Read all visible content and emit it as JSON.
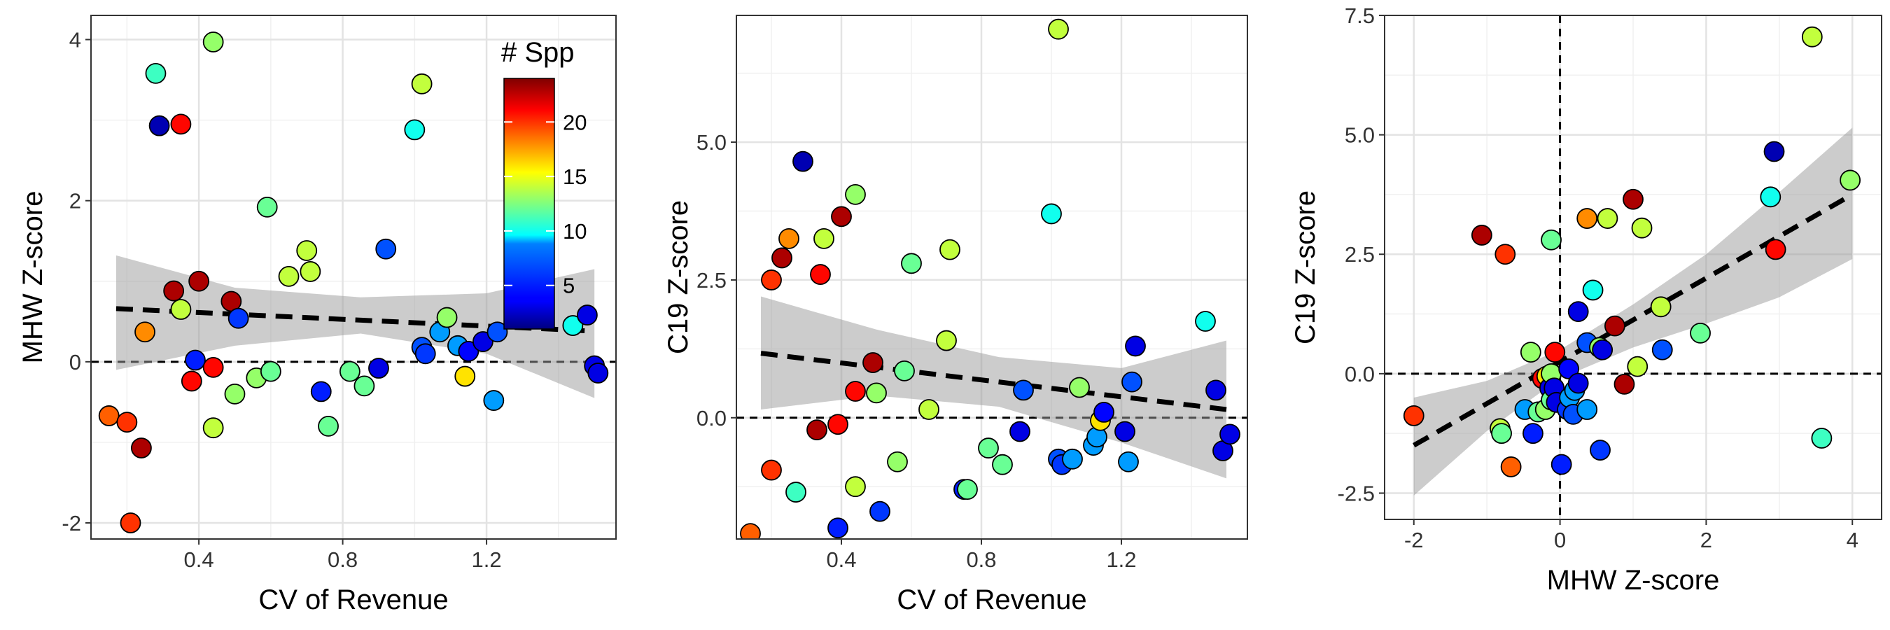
{
  "chart_data": [
    {
      "type": "scatter",
      "xlabel": "CV of Revenue",
      "ylabel": "MHW Z-score",
      "xlim": [
        0.1,
        1.56
      ],
      "ylim": [
        -2.2,
        4.3
      ],
      "x_ticks": [
        0.4,
        0.8,
        1.2
      ],
      "x_tick_labels": [
        "0.4",
        "0.8",
        "1.2"
      ],
      "y_ticks": [
        -2,
        0,
        2,
        4
      ],
      "y_tick_labels": [
        "-2",
        "0",
        "2",
        "4"
      ],
      "grid": true,
      "hline": 0,
      "fit": {
        "x0": 0.17,
        "y0": 0.66,
        "x1": 1.5,
        "y1": 0.38
      },
      "ci_band": {
        "x": [
          0.17,
          0.5,
          0.85,
          1.2,
          1.5
        ],
        "lower": [
          -0.1,
          0.2,
          0.35,
          0.1,
          -0.45
        ],
        "upper": [
          1.32,
          0.92,
          0.8,
          0.85,
          1.15
        ]
      },
      "points": [
        {
          "x": 0.15,
          "y": -0.67,
          "spp": 19
        },
        {
          "x": 0.2,
          "y": -0.75,
          "spp": 20
        },
        {
          "x": 0.21,
          "y": -2.0,
          "spp": 20
        },
        {
          "x": 0.24,
          "y": -1.07,
          "spp": 23
        },
        {
          "x": 0.25,
          "y": 0.37,
          "spp": 18
        },
        {
          "x": 0.28,
          "y": 3.58,
          "spp": 11
        },
        {
          "x": 0.29,
          "y": 2.93,
          "spp": 2
        },
        {
          "x": 0.33,
          "y": 0.88,
          "spp": 23
        },
        {
          "x": 0.35,
          "y": 2.95,
          "spp": 21
        },
        {
          "x": 0.35,
          "y": 0.65,
          "spp": 14
        },
        {
          "x": 0.38,
          "y": -0.24,
          "spp": 21
        },
        {
          "x": 0.39,
          "y": 0.02,
          "spp": 5
        },
        {
          "x": 0.4,
          "y": 1.0,
          "spp": 23
        },
        {
          "x": 0.44,
          "y": -0.07,
          "spp": 21
        },
        {
          "x": 0.44,
          "y": -0.82,
          "spp": 14
        },
        {
          "x": 0.44,
          "y": 3.97,
          "spp": 13
        },
        {
          "x": 0.49,
          "y": 0.75,
          "spp": 23
        },
        {
          "x": 0.5,
          "y": -0.4,
          "spp": 13
        },
        {
          "x": 0.51,
          "y": 0.54,
          "spp": 6
        },
        {
          "x": 0.56,
          "y": -0.2,
          "spp": 13
        },
        {
          "x": 0.59,
          "y": 1.92,
          "spp": 12
        },
        {
          "x": 0.6,
          "y": -0.12,
          "spp": 12
        },
        {
          "x": 0.65,
          "y": 1.06,
          "spp": 14
        },
        {
          "x": 0.7,
          "y": 1.38,
          "spp": 14
        },
        {
          "x": 0.71,
          "y": 1.12,
          "spp": 14
        },
        {
          "x": 0.74,
          "y": -0.37,
          "spp": 5
        },
        {
          "x": 0.76,
          "y": -0.8,
          "spp": 12
        },
        {
          "x": 0.82,
          "y": -0.12,
          "spp": 12
        },
        {
          "x": 0.86,
          "y": -0.3,
          "spp": 12
        },
        {
          "x": 0.9,
          "y": -0.08,
          "spp": 3
        },
        {
          "x": 0.92,
          "y": 1.4,
          "spp": 7
        },
        {
          "x": 1.0,
          "y": 2.88,
          "spp": 10
        },
        {
          "x": 1.02,
          "y": 3.45,
          "spp": 14
        },
        {
          "x": 1.02,
          "y": 0.18,
          "spp": 7
        },
        {
          "x": 1.03,
          "y": 0.1,
          "spp": 6
        },
        {
          "x": 1.07,
          "y": 0.37,
          "spp": 9
        },
        {
          "x": 1.09,
          "y": 0.55,
          "spp": 13
        },
        {
          "x": 1.12,
          "y": 0.2,
          "spp": 9
        },
        {
          "x": 1.14,
          "y": -0.18,
          "spp": 16
        },
        {
          "x": 1.15,
          "y": 0.13,
          "spp": 4
        },
        {
          "x": 1.19,
          "y": 0.25,
          "spp": 3
        },
        {
          "x": 1.22,
          "y": -0.48,
          "spp": 9
        },
        {
          "x": 1.23,
          "y": 0.37,
          "spp": 7
        },
        {
          "x": 1.44,
          "y": 0.45,
          "spp": 10
        },
        {
          "x": 1.48,
          "y": 0.58,
          "spp": 3
        },
        {
          "x": 1.5,
          "y": -0.05,
          "spp": 3
        },
        {
          "x": 1.51,
          "y": -0.14,
          "spp": 3
        }
      ],
      "legend": {
        "title": "# Spp",
        "position": "top-right",
        "range": [
          1,
          24
        ],
        "ticks": [
          5,
          10,
          15,
          20
        ],
        "tick_labels": [
          "5",
          "10",
          "15",
          "20"
        ]
      }
    },
    {
      "type": "scatter",
      "xlabel": "CV of Revenue",
      "ylabel": "C19 Z-score",
      "xlim": [
        0.1,
        1.56
      ],
      "ylim": [
        -2.2,
        7.3
      ],
      "x_ticks": [
        0.4,
        0.8,
        1.2
      ],
      "x_tick_labels": [
        "0.4",
        "0.8",
        "1.2"
      ],
      "y_ticks": [
        0,
        2.5,
        5
      ],
      "y_tick_labels": [
        "0.0",
        "2.5",
        "5.0"
      ],
      "grid": true,
      "hline": 0,
      "fit": {
        "x0": 0.17,
        "y0": 1.17,
        "x1": 1.5,
        "y1": 0.15
      },
      "ci_band": {
        "x": [
          0.17,
          0.5,
          0.85,
          1.2,
          1.5
        ],
        "lower": [
          0.15,
          0.4,
          0.2,
          -0.45,
          -1.1
        ],
        "upper": [
          2.2,
          1.6,
          1.1,
          0.9,
          1.4
        ]
      },
      "points": [
        {
          "x": 0.14,
          "y": -2.1,
          "spp": 19
        },
        {
          "x": 0.2,
          "y": 2.5,
          "spp": 20
        },
        {
          "x": 0.2,
          "y": -0.95,
          "spp": 20
        },
        {
          "x": 0.23,
          "y": 2.9,
          "spp": 23
        },
        {
          "x": 0.25,
          "y": 3.25,
          "spp": 18
        },
        {
          "x": 0.27,
          "y": -1.35,
          "spp": 11
        },
        {
          "x": 0.29,
          "y": 4.65,
          "spp": 2
        },
        {
          "x": 0.33,
          "y": -0.22,
          "spp": 23
        },
        {
          "x": 0.34,
          "y": 2.6,
          "spp": 21
        },
        {
          "x": 0.35,
          "y": 3.25,
          "spp": 14
        },
        {
          "x": 0.39,
          "y": -0.12,
          "spp": 21
        },
        {
          "x": 0.39,
          "y": -2.0,
          "spp": 5
        },
        {
          "x": 0.4,
          "y": 3.65,
          "spp": 23
        },
        {
          "x": 0.44,
          "y": 0.48,
          "spp": 21
        },
        {
          "x": 0.44,
          "y": -1.25,
          "spp": 14
        },
        {
          "x": 0.44,
          "y": 4.05,
          "spp": 13
        },
        {
          "x": 0.49,
          "y": 1.0,
          "spp": 23
        },
        {
          "x": 0.5,
          "y": 0.45,
          "spp": 13
        },
        {
          "x": 0.51,
          "y": -1.7,
          "spp": 6
        },
        {
          "x": 0.56,
          "y": -0.8,
          "spp": 13
        },
        {
          "x": 0.58,
          "y": 0.85,
          "spp": 12
        },
        {
          "x": 0.6,
          "y": 2.8,
          "spp": 12
        },
        {
          "x": 0.65,
          "y": 0.15,
          "spp": 14
        },
        {
          "x": 0.7,
          "y": 1.4,
          "spp": 14
        },
        {
          "x": 0.71,
          "y": 3.05,
          "spp": 14
        },
        {
          "x": 0.75,
          "y": -1.3,
          "spp": 5
        },
        {
          "x": 0.76,
          "y": -1.3,
          "spp": 12
        },
        {
          "x": 0.82,
          "y": -0.55,
          "spp": 12
        },
        {
          "x": 0.86,
          "y": -0.85,
          "spp": 12
        },
        {
          "x": 0.91,
          "y": -0.25,
          "spp": 3
        },
        {
          "x": 0.92,
          "y": 0.5,
          "spp": 7
        },
        {
          "x": 1.0,
          "y": 3.7,
          "spp": 10
        },
        {
          "x": 1.02,
          "y": 7.05,
          "spp": 14
        },
        {
          "x": 1.02,
          "y": -0.75,
          "spp": 7
        },
        {
          "x": 1.03,
          "y": -0.85,
          "spp": 6
        },
        {
          "x": 1.06,
          "y": -0.75,
          "spp": 9
        },
        {
          "x": 1.08,
          "y": 0.55,
          "spp": 13
        },
        {
          "x": 1.12,
          "y": -0.5,
          "spp": 9
        },
        {
          "x": 1.13,
          "y": -0.35,
          "spp": 9
        },
        {
          "x": 1.14,
          "y": -0.05,
          "spp": 16
        },
        {
          "x": 1.15,
          "y": 0.1,
          "spp": 4
        },
        {
          "x": 1.21,
          "y": -0.25,
          "spp": 3
        },
        {
          "x": 1.22,
          "y": -0.8,
          "spp": 9
        },
        {
          "x": 1.23,
          "y": 0.65,
          "spp": 7
        },
        {
          "x": 1.24,
          "y": 1.3,
          "spp": 3
        },
        {
          "x": 1.44,
          "y": 1.75,
          "spp": 10
        },
        {
          "x": 1.47,
          "y": 0.5,
          "spp": 3
        },
        {
          "x": 1.49,
          "y": -0.6,
          "spp": 3
        },
        {
          "x": 1.51,
          "y": -0.3,
          "spp": 3
        }
      ]
    },
    {
      "type": "scatter",
      "xlabel": "MHW Z-score",
      "ylabel": "C19 Z-score",
      "xlim": [
        -2.4,
        4.4
      ],
      "ylim": [
        -3.05,
        7.5
      ],
      "x_ticks": [
        -2,
        0,
        2,
        4
      ],
      "x_tick_labels": [
        "-2",
        "0",
        "2",
        "4"
      ],
      "y_ticks": [
        -2.5,
        0,
        2.5,
        5,
        7.5
      ],
      "y_tick_labels": [
        "-2.5",
        "0.0",
        "2.5",
        "5.0",
        "7.5"
      ],
      "grid": true,
      "hline": 0,
      "vline": 0,
      "fit": {
        "x0": -2.0,
        "y0": -1.5,
        "x1": 4.0,
        "y1": 3.75
      },
      "ci_band": {
        "x": [
          -2.0,
          -1.0,
          0.0,
          1.0,
          2.0,
          3.0,
          4.0
        ],
        "lower": [
          -2.55,
          -1.2,
          -0.1,
          0.55,
          1.05,
          1.6,
          2.4
        ],
        "upper": [
          -0.5,
          -0.15,
          0.5,
          1.45,
          2.5,
          3.8,
          5.15
        ]
      },
      "points": [
        {
          "x": -2.0,
          "y": -0.88,
          "spp": 20
        },
        {
          "x": -1.07,
          "y": 2.9,
          "spp": 23
        },
        {
          "x": -0.75,
          "y": 2.5,
          "spp": 20
        },
        {
          "x": -0.67,
          "y": -1.95,
          "spp": 19
        },
        {
          "x": -0.82,
          "y": -1.15,
          "spp": 14
        },
        {
          "x": -0.8,
          "y": -1.25,
          "spp": 12
        },
        {
          "x": -0.48,
          "y": -0.75,
          "spp": 9
        },
        {
          "x": -0.4,
          "y": 0.45,
          "spp": 13
        },
        {
          "x": -0.37,
          "y": -1.25,
          "spp": 5
        },
        {
          "x": -0.3,
          "y": -0.8,
          "spp": 12
        },
        {
          "x": -0.24,
          "y": -0.1,
          "spp": 21
        },
        {
          "x": -0.2,
          "y": -0.75,
          "spp": 13
        },
        {
          "x": -0.18,
          "y": -0.05,
          "spp": 16
        },
        {
          "x": -0.14,
          "y": -0.3,
          "spp": 3
        },
        {
          "x": -0.12,
          "y": 0.0,
          "spp": 13
        },
        {
          "x": -0.12,
          "y": -0.55,
          "spp": 12
        },
        {
          "x": -0.12,
          "y": 2.8,
          "spp": 12
        },
        {
          "x": -0.08,
          "y": -0.3,
          "spp": 3
        },
        {
          "x": -0.07,
          "y": 0.45,
          "spp": 21
        },
        {
          "x": -0.05,
          "y": -0.6,
          "spp": 3
        },
        {
          "x": 0.02,
          "y": -1.9,
          "spp": 5
        },
        {
          "x": 0.1,
          "y": -0.75,
          "spp": 6
        },
        {
          "x": 0.12,
          "y": 0.1,
          "spp": 4
        },
        {
          "x": 0.13,
          "y": -0.5,
          "spp": 9
        },
        {
          "x": 0.18,
          "y": -0.85,
          "spp": 7
        },
        {
          "x": 0.2,
          "y": -0.35,
          "spp": 9
        },
        {
          "x": 0.25,
          "y": -0.2,
          "spp": 3
        },
        {
          "x": 0.25,
          "y": 1.3,
          "spp": 3
        },
        {
          "x": 0.37,
          "y": 0.65,
          "spp": 7
        },
        {
          "x": 0.37,
          "y": -0.75,
          "spp": 9
        },
        {
          "x": 0.37,
          "y": 3.25,
          "spp": 18
        },
        {
          "x": 0.45,
          "y": 1.75,
          "spp": 10
        },
        {
          "x": 0.54,
          "y": 0.55,
          "spp": 13
        },
        {
          "x": 0.55,
          "y": -1.6,
          "spp": 6
        },
        {
          "x": 0.58,
          "y": 0.5,
          "spp": 3
        },
        {
          "x": 0.65,
          "y": 3.25,
          "spp": 14
        },
        {
          "x": 0.75,
          "y": 1.0,
          "spp": 23
        },
        {
          "x": 0.88,
          "y": -0.22,
          "spp": 23
        },
        {
          "x": 1.0,
          "y": 3.65,
          "spp": 23
        },
        {
          "x": 1.06,
          "y": 0.15,
          "spp": 14
        },
        {
          "x": 1.12,
          "y": 3.05,
          "spp": 14
        },
        {
          "x": 1.38,
          "y": 1.4,
          "spp": 14
        },
        {
          "x": 1.4,
          "y": 0.5,
          "spp": 7
        },
        {
          "x": 1.92,
          "y": 0.85,
          "spp": 12
        },
        {
          "x": 2.88,
          "y": 3.7,
          "spp": 10
        },
        {
          "x": 2.93,
          "y": 4.65,
          "spp": 2
        },
        {
          "x": 2.95,
          "y": 2.6,
          "spp": 21
        },
        {
          "x": 3.45,
          "y": 7.05,
          "spp": 14
        },
        {
          "x": 3.58,
          "y": -1.35,
          "spp": 11
        },
        {
          "x": 3.97,
          "y": 4.05,
          "spp": 13
        }
      ]
    }
  ]
}
